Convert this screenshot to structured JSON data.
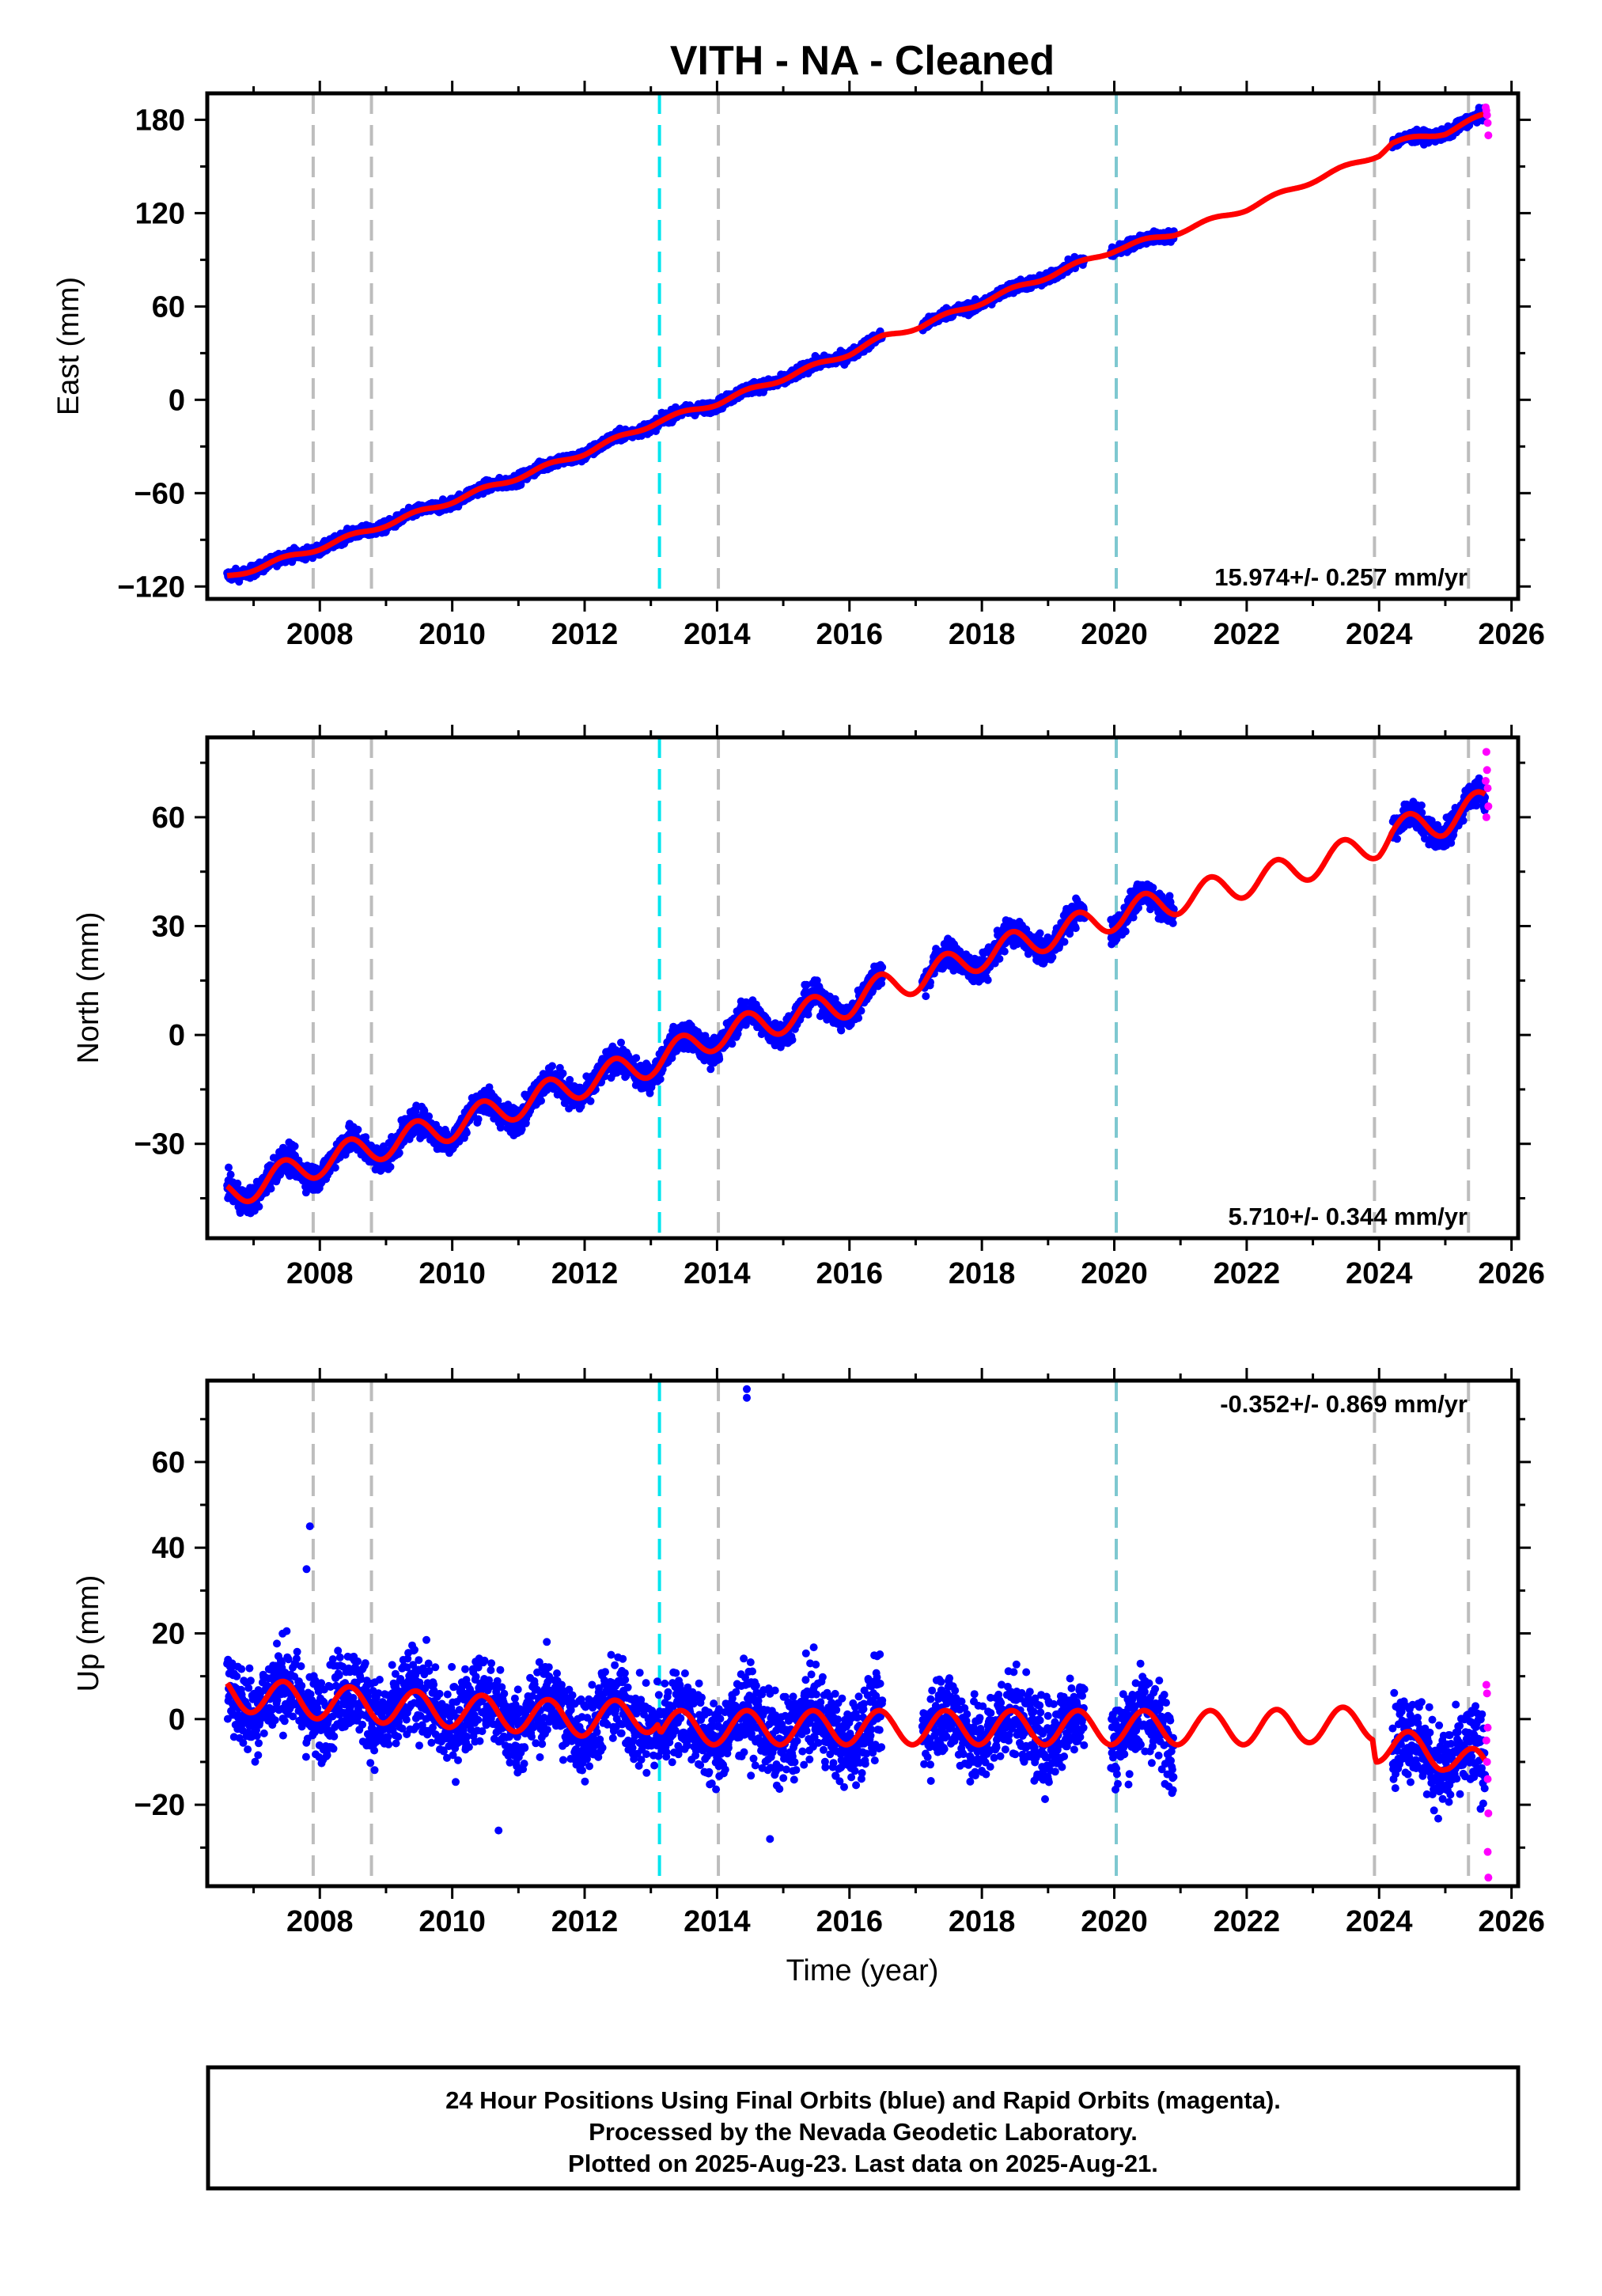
{
  "title": "VITH  - NA - Cleaned",
  "xlabel": "Time (year)",
  "colors": {
    "final": "#0000ff",
    "rapid": "#ff00ff",
    "model": "#ff0000",
    "grid": "#bdbdbd",
    "cyan": "#00e5ee",
    "teal": "#7ec8d0"
  },
  "footer": {
    "line1": "24 Hour Positions Using Final Orbits (blue) and Rapid Orbits (magenta).",
    "line2": "Processed by the Nevada Geodetic Laboratory.",
    "line3": "Plotted on 2025-Aug-23. Last data on 2025-Aug-21."
  },
  "chart_data": [
    {
      "type": "scatter",
      "name": "East",
      "ylabel": "East (mm)",
      "rate_label": "15.974+/- 0.257 mm/yr",
      "rate": 15.974,
      "rate_sigma": 0.257,
      "xlim": [
        2006.3,
        2026.1
      ],
      "ylim": [
        -128,
        197
      ],
      "xticks": [
        2008,
        2010,
        2012,
        2014,
        2016,
        2018,
        2020,
        2022,
        2024,
        2026
      ],
      "yticks": [
        -120,
        -60,
        0,
        60,
        120,
        180
      ],
      "offset_lines": [
        {
          "x": 2007.9,
          "kind": "grid"
        },
        {
          "x": 2008.78,
          "kind": "grid"
        },
        {
          "x": 2013.13,
          "kind": "cyan"
        },
        {
          "x": 2014.02,
          "kind": "grid"
        },
        {
          "x": 2020.03,
          "kind": "teal"
        },
        {
          "x": 2023.93,
          "kind": "grid"
        },
        {
          "x": 2025.35,
          "kind": "grid"
        }
      ],
      "data_segments": [
        [
          2006.6,
          2016.5
        ],
        [
          2017.1,
          2019.55
        ],
        [
          2019.95,
          2020.9
        ],
        [
          2024.2,
          2025.6
        ]
      ],
      "model_points": [
        [
          2006.6,
          -114
        ],
        [
          2008.0,
          -95
        ],
        [
          2010.0,
          -65
        ],
        [
          2012.0,
          -34
        ],
        [
          2013.1,
          -14
        ],
        [
          2014.0,
          -2
        ],
        [
          2016.0,
          30
        ],
        [
          2016.5,
          40
        ],
        [
          2017.1,
          48
        ],
        [
          2018.0,
          63
        ],
        [
          2019.5,
          88
        ],
        [
          2020.03,
          97
        ],
        [
          2020.9,
          107
        ],
        [
          2022.0,
          123
        ],
        [
          2023.0,
          141
        ],
        [
          2024.0,
          158
        ],
        [
          2024.2,
          165
        ],
        [
          2025.0,
          172
        ],
        [
          2025.6,
          183
        ]
      ],
      "seasonal_amp": 1.5,
      "scatter": 2.5,
      "rapid_points": [
        [
          2025.62,
          186
        ],
        [
          2025.63,
          183
        ],
        [
          2025.64,
          178
        ],
        [
          2025.65,
          170
        ],
        [
          2025.61,
          188
        ]
      ]
    },
    {
      "type": "scatter",
      "name": "North",
      "ylabel": "North (mm)",
      "rate_label": "5.710+/- 0.344 mm/yr",
      "rate": 5.71,
      "rate_sigma": 0.344,
      "xlim": [
        2006.3,
        2026.1
      ],
      "ylim": [
        -56,
        82
      ],
      "xticks": [
        2008,
        2010,
        2012,
        2014,
        2016,
        2018,
        2020,
        2022,
        2024,
        2026
      ],
      "yticks": [
        -30,
        0,
        30,
        60
      ],
      "offset_lines": [
        {
          "x": 2007.9,
          "kind": "grid"
        },
        {
          "x": 2008.78,
          "kind": "grid"
        },
        {
          "x": 2013.13,
          "kind": "cyan"
        },
        {
          "x": 2014.02,
          "kind": "grid"
        },
        {
          "x": 2020.03,
          "kind": "teal"
        },
        {
          "x": 2023.93,
          "kind": "grid"
        },
        {
          "x": 2025.35,
          "kind": "grid"
        }
      ],
      "data_segments": [
        [
          2006.6,
          2016.5
        ],
        [
          2017.1,
          2019.55
        ],
        [
          2019.95,
          2020.9
        ],
        [
          2024.2,
          2025.6
        ]
      ],
      "model_points": [
        [
          2006.6,
          -44
        ],
        [
          2008.0,
          -35
        ],
        [
          2010.0,
          -25
        ],
        [
          2012.0,
          -13
        ],
        [
          2013.1,
          -7
        ],
        [
          2014.0,
          0
        ],
        [
          2016.0,
          9
        ],
        [
          2016.5,
          13
        ],
        [
          2017.1,
          16
        ],
        [
          2018.0,
          22
        ],
        [
          2019.5,
          30
        ],
        [
          2020.03,
          33
        ],
        [
          2020.9,
          37
        ],
        [
          2022.0,
          42
        ],
        [
          2023.0,
          47
        ],
        [
          2024.0,
          53
        ],
        [
          2024.2,
          56
        ],
        [
          2025.0,
          59
        ],
        [
          2025.6,
          64
        ]
      ],
      "seasonal_amp": 4,
      "scatter": 2.6,
      "rapid_points": [
        [
          2025.62,
          78
        ],
        [
          2025.63,
          73
        ],
        [
          2025.64,
          68
        ],
        [
          2025.65,
          63
        ],
        [
          2025.61,
          70
        ],
        [
          2025.62,
          60
        ]
      ]
    },
    {
      "type": "scatter",
      "name": "Up",
      "ylabel": "Up (mm)",
      "rate_label": "-0.352+/- 0.869 mm/yr",
      "rate": -0.352,
      "rate_sigma": 0.869,
      "xlim": [
        2006.3,
        2026.1
      ],
      "ylim": [
        -39,
        79
      ],
      "xticks": [
        2008,
        2010,
        2012,
        2014,
        2016,
        2018,
        2020,
        2022,
        2024,
        2026
      ],
      "yticks": [
        -20,
        0,
        20,
        40,
        60
      ],
      "offset_lines": [
        {
          "x": 2007.9,
          "kind": "grid"
        },
        {
          "x": 2008.78,
          "kind": "grid"
        },
        {
          "x": 2013.13,
          "kind": "cyan"
        },
        {
          "x": 2014.02,
          "kind": "grid"
        },
        {
          "x": 2020.03,
          "kind": "teal"
        },
        {
          "x": 2023.93,
          "kind": "grid"
        },
        {
          "x": 2025.35,
          "kind": "grid"
        }
      ],
      "data_segments": [
        [
          2006.6,
          2016.5
        ],
        [
          2017.1,
          2019.55
        ],
        [
          2019.95,
          2020.9
        ],
        [
          2024.2,
          2025.6
        ]
      ],
      "model_points": [
        [
          2006.6,
          6
        ],
        [
          2008.0,
          4
        ],
        [
          2010.0,
          2
        ],
        [
          2012.0,
          0
        ],
        [
          2013.1,
          1
        ],
        [
          2013.15,
          -2
        ],
        [
          2014.0,
          -2
        ],
        [
          2016.0,
          -2
        ],
        [
          2018.0,
          -2
        ],
        [
          2020.0,
          -2
        ],
        [
          2022.0,
          -2
        ],
        [
          2023.9,
          -1
        ],
        [
          2023.95,
          -6
        ],
        [
          2025.0,
          -8
        ],
        [
          2025.6,
          -12
        ]
      ],
      "seasonal_amp": 4,
      "scatter": 7,
      "outliers": [
        [
          2014.45,
          77
        ],
        [
          2014.45,
          75
        ],
        [
          2007.85,
          45
        ],
        [
          2007.8,
          35
        ],
        [
          2010.7,
          -26
        ],
        [
          2014.8,
          -28
        ]
      ],
      "rapid_points": [
        [
          2025.62,
          8
        ],
        [
          2025.63,
          6
        ],
        [
          2025.64,
          -2
        ],
        [
          2025.62,
          -5
        ],
        [
          2025.63,
          -10
        ],
        [
          2025.64,
          -14
        ],
        [
          2025.65,
          -22
        ],
        [
          2025.64,
          -31
        ],
        [
          2025.65,
          -37
        ]
      ]
    }
  ]
}
